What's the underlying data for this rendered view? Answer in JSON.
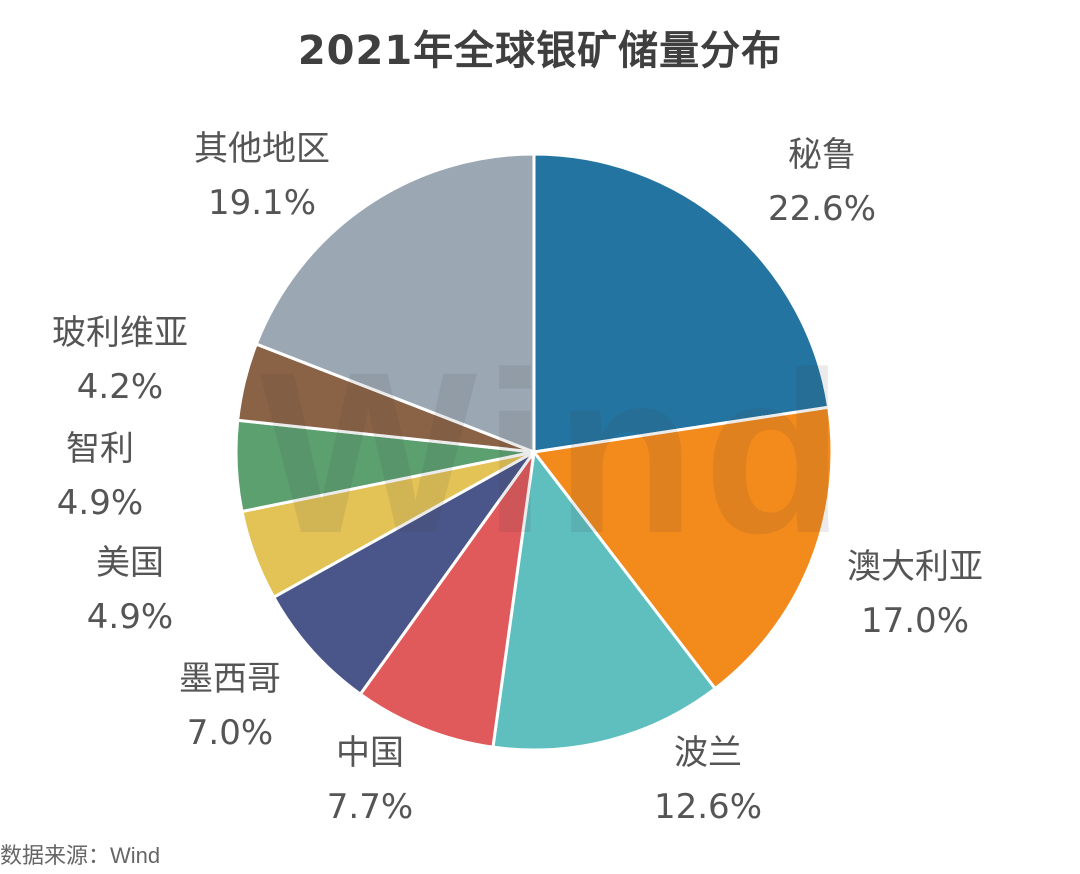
{
  "chart_data": {
    "type": "pie",
    "title": "2021年全球银矿储量分布",
    "unit": "%",
    "slices": [
      {
        "name": "秘鲁",
        "value": 22.6,
        "label": "22.6%",
        "color": "#2474a1"
      },
      {
        "name": "澳大利亚",
        "value": 17.0,
        "label": "17.0%",
        "color": "#f28a1c"
      },
      {
        "name": "波兰",
        "value": 12.6,
        "label": "12.6%",
        "color": "#5fbfbf"
      },
      {
        "name": "中国",
        "value": 7.7,
        "label": "7.7%",
        "color": "#e05a5c"
      },
      {
        "name": "墨西哥",
        "value": 7.0,
        "label": "7.0%",
        "color": "#4a568a"
      },
      {
        "name": "美国",
        "value": 4.9,
        "label": "4.9%",
        "color": "#e3c256"
      },
      {
        "name": "智利",
        "value": 4.9,
        "label": "4.9%",
        "color": "#5da070"
      },
      {
        "name": "玻利维亚",
        "value": 4.2,
        "label": "4.2%",
        "color": "#8a6246"
      },
      {
        "name": "其他地区",
        "value": 19.1,
        "label": "19.1%",
        "color": "#9ca7b4"
      }
    ],
    "start_angle": "12 o'clock",
    "direction": "clockwise"
  },
  "watermark": "Wind",
  "source": "数据来源：Wind"
}
